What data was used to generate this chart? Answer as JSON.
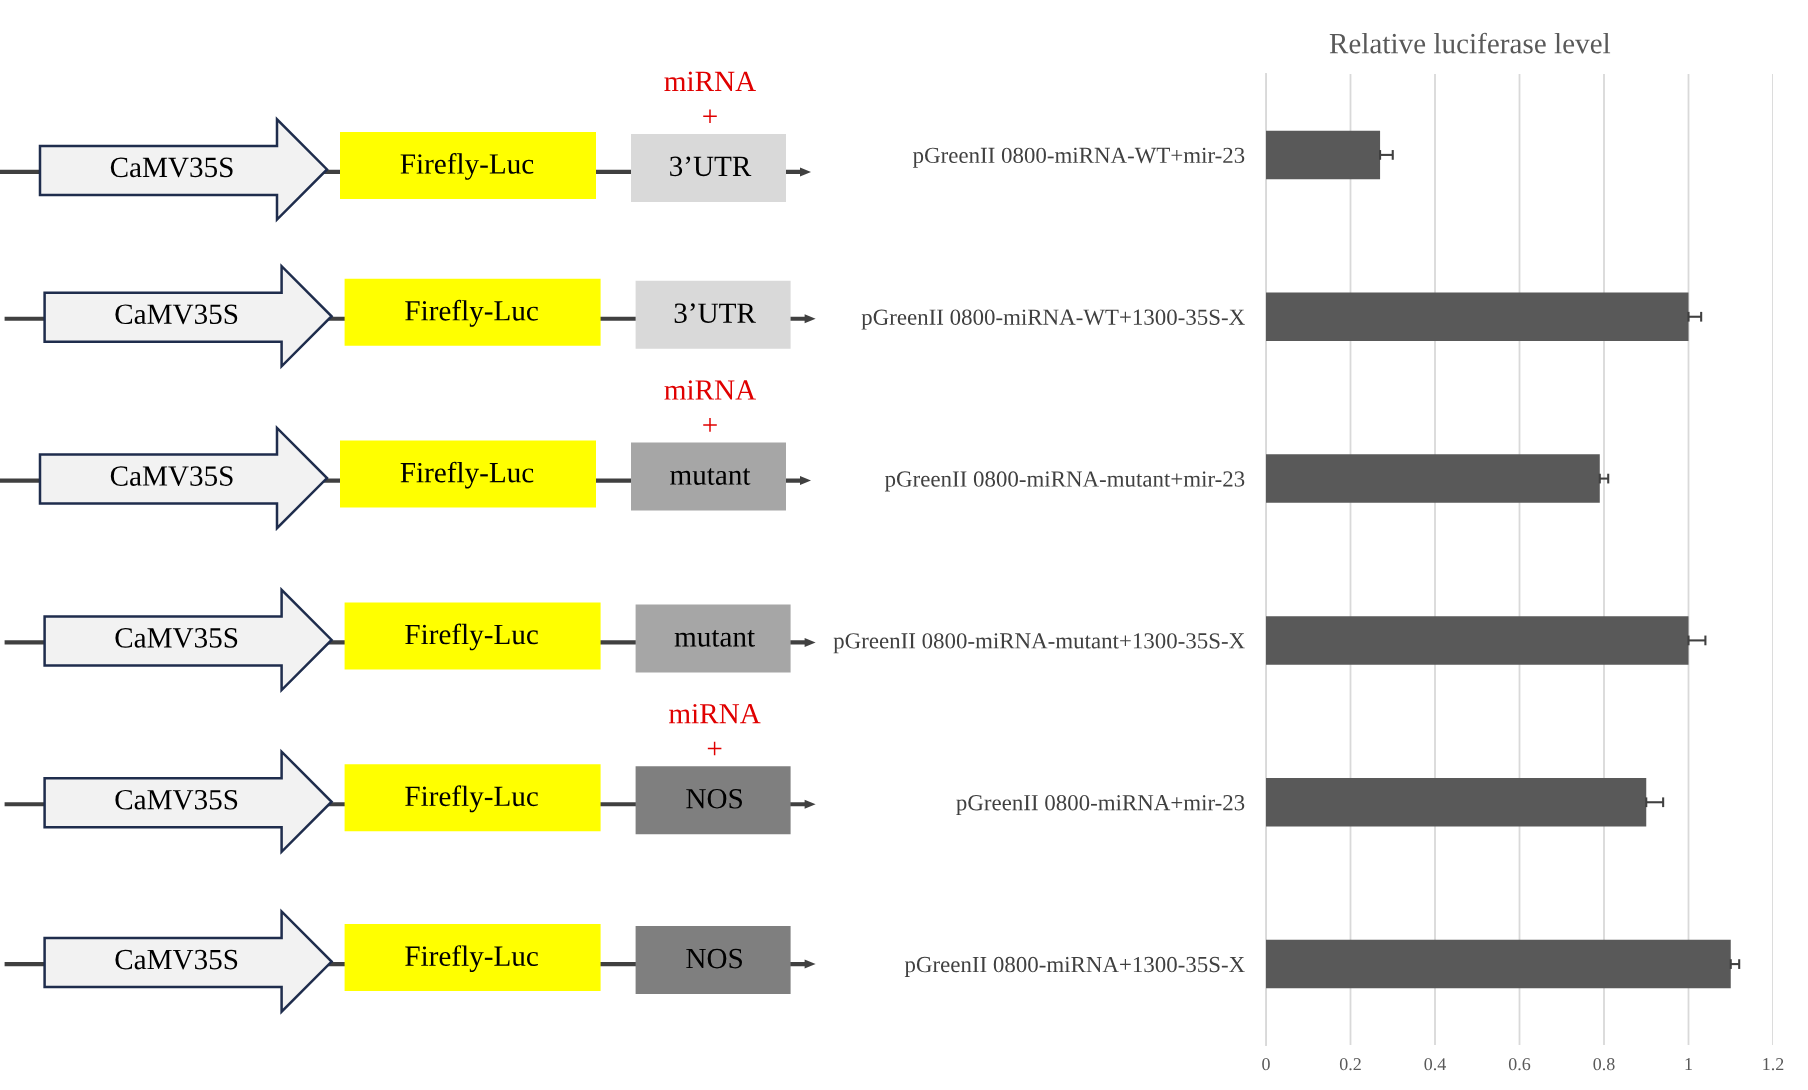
{
  "chart_data": {
    "type": "bar",
    "orientation": "horizontal",
    "title": "Relative luciferase level",
    "categories": [
      "pGreenII 0800-miRNA-WT+mir-23",
      "pGreenII 0800-miRNA-WT+1300-35S-X",
      "pGreenII 0800-miRNA-mutant+mir-23",
      "pGreenII 0800-miRNA-mutant+1300-35S-X",
      "pGreenII 0800-miRNA+mir-23",
      "pGreenII 0800-miRNA+1300-35S-X"
    ],
    "values": [
      0.27,
      1.0,
      0.79,
      1.0,
      0.9,
      1.1
    ],
    "errors": [
      [
        0.27,
        0.3
      ],
      [
        1.0,
        1.03
      ],
      [
        0.79,
        0.81
      ],
      [
        1.0,
        1.04
      ],
      [
        0.9,
        0.94
      ],
      [
        1.1,
        1.12
      ]
    ],
    "color": "#595959",
    "xlim": [
      0,
      1.2
    ],
    "xticks": [
      0,
      0.2,
      0.4,
      0.6,
      0.8,
      1,
      1.2
    ],
    "grid": "x",
    "annotations": [
      "miRNA",
      "+",
      "CaMV35S",
      "Firefly-Luc",
      "3’UTR",
      "CaMV35S",
      "Firefly-Luc",
      "3’UTR",
      "miRNA",
      "+",
      "CaMV35S",
      "Firefly-Luc",
      "mutant",
      "CaMV35S",
      "Firefly-Luc",
      "mutant",
      "miRNA",
      "+",
      "CaMV35S",
      "Firefly-Luc",
      "NOS",
      "CaMV35S",
      "Firefly-Luc",
      "NOS"
    ]
  }
}
